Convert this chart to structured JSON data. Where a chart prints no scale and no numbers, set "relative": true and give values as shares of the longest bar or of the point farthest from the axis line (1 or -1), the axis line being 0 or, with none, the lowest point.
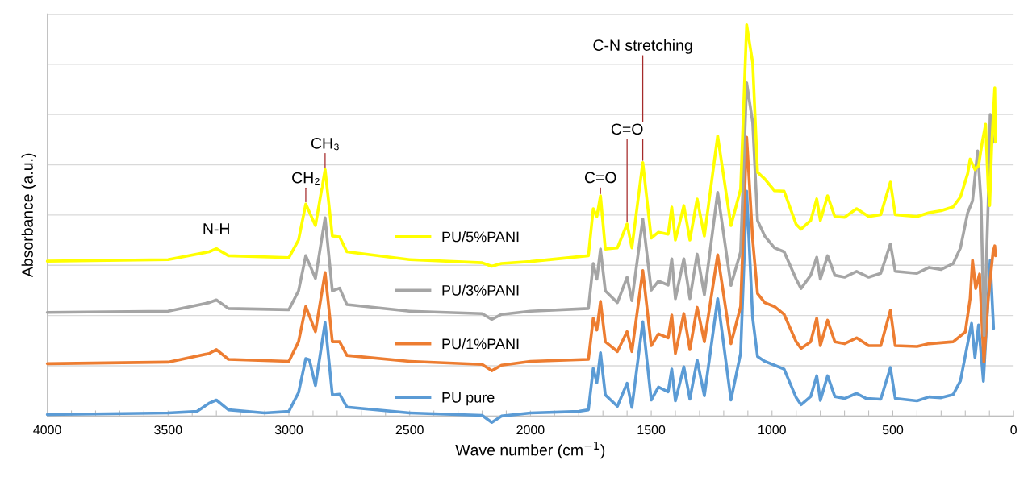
{
  "chart_data": {
    "type": "line",
    "relative": true,
    "xlabel": "Wave number (cm$^{−1}$)",
    "ylabel": "Absorbance (a.u.)",
    "xlim": [
      4000,
      0
    ],
    "xticks": [
      4000,
      {
        "value": 3900,
        "label": null
      },
      {
        "value": 3800,
        "label": null
      },
      {
        "value": 3700,
        "label": null
      },
      {
        "value": 3600,
        "label": null
      },
      3500,
      {
        "value": 3400,
        "label": null
      },
      {
        "value": 3300,
        "label": null
      },
      {
        "value": 3200,
        "label": null
      },
      {
        "value": 3100,
        "label": null
      },
      3000,
      {
        "value": 2900,
        "label": null
      },
      {
        "value": 2800,
        "label": null
      },
      {
        "value": 2700,
        "label": null
      },
      {
        "value": 2600,
        "label": null
      },
      2500,
      {
        "value": 2400,
        "label": null
      },
      {
        "value": 2300,
        "label": null
      },
      {
        "value": 2200,
        "label": null
      },
      {
        "value": 2100,
        "label": null
      },
      2000,
      {
        "value": 1900,
        "label": null
      },
      {
        "value": 1800,
        "label": null
      },
      {
        "value": 1700,
        "label": null
      },
      {
        "value": 1600,
        "label": null
      },
      1500,
      {
        "value": 1400,
        "label": null
      },
      {
        "value": 1300,
        "label": null
      },
      {
        "value": 1200,
        "label": null
      },
      {
        "value": 1100,
        "label": null
      },
      1000,
      {
        "value": 900,
        "label": null
      },
      {
        "value": 800,
        "label": null
      },
      {
        "value": 700,
        "label": null
      },
      {
        "value": 600,
        "label": null
      },
      500,
      {
        "value": 400,
        "label": null
      },
      {
        "value": 300,
        "label": null
      },
      {
        "value": 200,
        "label": null
      },
      {
        "value": 100,
        "label": null
      },
      0
    ],
    "grid": "y",
    "tick_labels": "x",
    "legend": "center",
    "annotations": [
      {
        "text": "N-H",
        "x": 3300,
        "y": 0.428
      },
      {
        "text": "CH₂",
        "x": 2930,
        "y": 0.542
      },
      {
        "text": "CH₃",
        "x": 2850,
        "y": 0.63
      },
      {
        "text": "C=O",
        "x": 1710,
        "y": 0.563
      },
      {
        "text": "C=O",
        "x": 1600,
        "y": 0.491
      },
      {
        "text": "C-N stretching",
        "x": 1535,
        "y": 0.648
      }
    ],
    "series": [
      {
        "name": "PU/5%PANI",
        "color": "#ffff00",
        "x": [
          4000,
          3500,
          3330,
          3300,
          3250,
          3000,
          2960,
          2930,
          2890,
          2850,
          2820,
          2790,
          2760,
          2500,
          2200,
          2160,
          2120,
          2000,
          1760,
          1740,
          1725,
          1710,
          1690,
          1640,
          1600,
          1580,
          1535,
          1500,
          1470,
          1430,
          1415,
          1400,
          1365,
          1340,
          1310,
          1280,
          1225,
          1170,
          1130,
          1105,
          1080,
          1060,
          1030,
          990,
          950,
          900,
          880,
          840,
          815,
          800,
          770,
          740,
          700,
          650,
          600,
          550,
          510,
          490,
          400,
          350,
          300,
          250,
          220,
          190,
          180,
          160,
          145,
          130,
          116,
          105,
          99,
          90,
          78,
          75
        ],
        "values": [
          0.396,
          0.4,
          0.42,
          0.428,
          0.41,
          0.405,
          0.45,
          0.542,
          0.487,
          0.63,
          0.46,
          0.458,
          0.42,
          0.4,
          0.392,
          0.383,
          0.39,
          0.395,
          0.41,
          0.53,
          0.51,
          0.563,
          0.427,
          0.43,
          0.491,
          0.43,
          0.648,
          0.455,
          0.47,
          0.465,
          0.534,
          0.45,
          0.538,
          0.45,
          0.555,
          0.46,
          0.716,
          0.487,
          0.58,
          1.0,
          0.903,
          0.623,
          0.606,
          0.576,
          0.575,
          0.49,
          0.478,
          0.5,
          0.555,
          0.5,
          0.563,
          0.51,
          0.508,
          0.53,
          0.51,
          0.515,
          0.598,
          0.515,
          0.51,
          0.52,
          0.525,
          0.535,
          0.56,
          0.62,
          0.657,
          0.63,
          0.64,
          0.7,
          0.746,
          0.58,
          0.538,
          0.7,
          0.839,
          0.7
        ]
      },
      {
        "name": "PU/3%PANI",
        "color": "#a5a5a5",
        "x": [
          4000,
          3500,
          3330,
          3300,
          3250,
          3000,
          2960,
          2930,
          2890,
          2850,
          2820,
          2790,
          2760,
          2500,
          2200,
          2160,
          2120,
          2000,
          1760,
          1740,
          1725,
          1710,
          1690,
          1640,
          1600,
          1580,
          1535,
          1500,
          1470,
          1430,
          1415,
          1400,
          1365,
          1340,
          1310,
          1280,
          1225,
          1170,
          1130,
          1105,
          1080,
          1060,
          1030,
          990,
          950,
          900,
          880,
          840,
          815,
          800,
          770,
          740,
          700,
          650,
          600,
          550,
          510,
          490,
          400,
          350,
          300,
          250,
          220,
          190,
          170,
          149,
          135,
          122,
          105,
          97,
          85
        ],
        "values": [
          0.265,
          0.268,
          0.29,
          0.297,
          0.275,
          0.272,
          0.32,
          0.41,
          0.352,
          0.507,
          0.32,
          0.327,
          0.285,
          0.268,
          0.262,
          0.247,
          0.26,
          0.268,
          0.275,
          0.39,
          0.35,
          0.427,
          0.32,
          0.29,
          0.355,
          0.295,
          0.504,
          0.322,
          0.345,
          0.335,
          0.402,
          0.3,
          0.402,
          0.3,
          0.414,
          0.31,
          0.572,
          0.334,
          0.42,
          0.852,
          0.75,
          0.5,
          0.46,
          0.43,
          0.42,
          0.35,
          0.326,
          0.36,
          0.406,
          0.35,
          0.41,
          0.36,
          0.355,
          0.37,
          0.355,
          0.365,
          0.44,
          0.37,
          0.365,
          0.38,
          0.375,
          0.39,
          0.43,
          0.52,
          0.55,
          0.678,
          0.55,
          0.206,
          0.55,
          0.771,
          0.7
        ]
      },
      {
        "name": "PU/1%PANI",
        "color": "#ed7d31",
        "x": [
          4000,
          3500,
          3330,
          3300,
          3250,
          3000,
          2960,
          2930,
          2890,
          2850,
          2820,
          2790,
          2760,
          2500,
          2200,
          2160,
          2120,
          2000,
          1760,
          1740,
          1725,
          1710,
          1690,
          1640,
          1600,
          1580,
          1535,
          1500,
          1470,
          1430,
          1415,
          1400,
          1365,
          1340,
          1310,
          1280,
          1225,
          1170,
          1130,
          1105,
          1080,
          1060,
          1030,
          990,
          950,
          900,
          880,
          840,
          815,
          800,
          770,
          740,
          700,
          650,
          600,
          550,
          510,
          490,
          400,
          350,
          250,
          200,
          180,
          170,
          157,
          141,
          123,
          105,
          85,
          78,
          75
        ],
        "values": [
          0.134,
          0.138,
          0.16,
          0.17,
          0.145,
          0.14,
          0.19,
          0.28,
          0.216,
          0.367,
          0.19,
          0.19,
          0.155,
          0.14,
          0.132,
          0.116,
          0.13,
          0.14,
          0.145,
          0.25,
          0.22,
          0.293,
          0.19,
          0.165,
          0.216,
          0.165,
          0.372,
          0.18,
          0.21,
          0.2,
          0.258,
          0.16,
          0.262,
          0.17,
          0.278,
          0.19,
          0.412,
          0.185,
          0.28,
          0.713,
          0.45,
          0.313,
          0.29,
          0.28,
          0.26,
          0.19,
          0.173,
          0.19,
          0.25,
          0.18,
          0.245,
          0.19,
          0.185,
          0.2,
          0.18,
          0.18,
          0.27,
          0.18,
          0.178,
          0.185,
          0.19,
          0.215,
          0.3,
          0.398,
          0.326,
          0.363,
          0.138,
          0.3,
          0.42,
          0.435,
          0.41
        ]
      },
      {
        "name": "PU pure",
        "color": "#5b9bd5",
        "x": [
          4000,
          3500,
          3380,
          3330,
          3300,
          3250,
          3100,
          3000,
          2960,
          2930,
          2915,
          2890,
          2850,
          2820,
          2790,
          2760,
          2500,
          2200,
          2160,
          2120,
          2000,
          1800,
          1760,
          1740,
          1725,
          1710,
          1690,
          1640,
          1600,
          1580,
          1535,
          1500,
          1470,
          1430,
          1415,
          1400,
          1365,
          1340,
          1310,
          1280,
          1225,
          1170,
          1130,
          1105,
          1080,
          1060,
          1030,
          990,
          950,
          900,
          880,
          840,
          815,
          800,
          770,
          740,
          700,
          650,
          610,
          550,
          510,
          490,
          400,
          350,
          300,
          250,
          220,
          174,
          160,
          145,
          125,
          97,
          83
        ],
        "values": [
          0.004,
          0.008,
          0.012,
          0.033,
          0.041,
          0.016,
          0.008,
          0.012,
          0.06,
          0.147,
          0.144,
          0.078,
          0.239,
          0.054,
          0.056,
          0.023,
          0.008,
          0.002,
          -0.016,
          0.0,
          0.008,
          0.012,
          0.016,
          0.122,
          0.085,
          0.162,
          0.054,
          0.025,
          0.084,
          0.022,
          0.241,
          0.041,
          0.074,
          0.062,
          0.12,
          0.039,
          0.126,
          0.043,
          0.143,
          0.052,
          0.3,
          0.041,
          0.16,
          0.575,
          0.25,
          0.152,
          0.14,
          0.13,
          0.12,
          0.047,
          0.029,
          0.05,
          0.103,
          0.04,
          0.103,
          0.05,
          0.045,
          0.058,
          0.045,
          0.043,
          0.124,
          0.045,
          0.039,
          0.049,
          0.047,
          0.055,
          0.09,
          0.237,
          0.15,
          0.233,
          0.089,
          0.398,
          0.224
        ]
      }
    ]
  }
}
